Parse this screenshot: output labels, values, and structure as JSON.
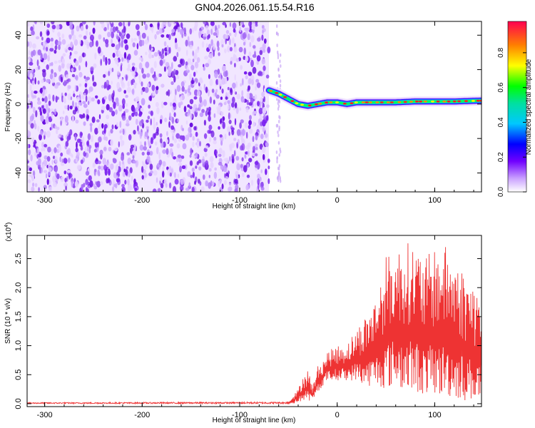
{
  "title": "GN04.2026.061.15.54.R16",
  "colors": {
    "snr_line": "#ee3333",
    "spec_dot": "#7a20f0",
    "background": "#ffffff"
  },
  "chart_data": [
    {
      "type": "heatmap",
      "name": "spectrogram",
      "xlabel": "Height of straight line (km)",
      "ylabel": "Frequency (Hz)",
      "xlim": [
        -318,
        148
      ],
      "ylim": [
        -51,
        48
      ],
      "xticks": [
        -300,
        -200,
        -100,
        0,
        100
      ],
      "xtick_labels": [
        "-300",
        "-200",
        "-100",
        "0",
        "100"
      ],
      "yticks": [
        -40,
        -20,
        0,
        20,
        40
      ],
      "ytick_labels": [
        "-40",
        "-20",
        "0",
        "20",
        "40"
      ],
      "noise_region_x": [
        -318,
        -70
      ],
      "signal_trace": {
        "x": [
          -70,
          -60,
          -50,
          -40,
          -30,
          -20,
          -10,
          0,
          10,
          20,
          40,
          60,
          80,
          100,
          120,
          148
        ],
        "y": [
          8,
          6,
          3,
          0,
          -1,
          0,
          1,
          1,
          0,
          1,
          1,
          1,
          1.5,
          1.5,
          1.5,
          2
        ]
      },
      "colorbar": {
        "label": "Normalized spectral amplitude",
        "range": [
          0,
          0.98
        ],
        "ticks": [
          0.0,
          0.2,
          0.4,
          0.6,
          0.8
        ],
        "tick_labels": [
          "0.0",
          "0.2",
          "0.4",
          "0.6",
          "0.8"
        ]
      }
    },
    {
      "type": "line",
      "name": "snr",
      "xlabel": "Height of straight line (km)",
      "ylabel": "SNR (10 * v/v)",
      "y_multiplier": "(x10",
      "y_multiplier_exp": "4",
      "y_multiplier_close": ")",
      "xlim": [
        -318,
        148
      ],
      "ylim": [
        -0.05,
        2.9
      ],
      "xticks": [
        -300,
        -200,
        -100,
        0,
        100
      ],
      "xtick_labels": [
        "-300",
        "-200",
        "-100",
        "0",
        "100"
      ],
      "yticks": [
        0.0,
        0.5,
        1.0,
        1.5,
        2.0,
        2.5
      ],
      "ytick_labels": [
        "0.0",
        "0.5",
        "1.0",
        "1.5",
        "2.0",
        "2.5"
      ],
      "envelope": {
        "x": [
          -318,
          -50,
          -45,
          -40,
          -35,
          -30,
          -25,
          -20,
          -15,
          -10,
          0,
          10,
          20,
          30,
          40,
          50,
          60,
          70,
          80,
          90,
          100,
          110,
          120,
          130,
          140,
          148
        ],
        "ymin": [
          0.0,
          0.0,
          0.0,
          0.02,
          0.05,
          0.05,
          0.05,
          0.2,
          0.3,
          0.4,
          0.4,
          0.4,
          0.4,
          0.3,
          0.3,
          0.25,
          0.3,
          0.2,
          0.2,
          0.15,
          0.15,
          0.1,
          0.1,
          0.05,
          0.05,
          0.05
        ],
        "ymax": [
          0.02,
          0.03,
          0.15,
          0.25,
          0.5,
          0.6,
          0.3,
          0.65,
          0.75,
          0.9,
          1.0,
          1.05,
          1.3,
          1.55,
          1.85,
          2.55,
          2.65,
          2.8,
          2.75,
          2.5,
          2.7,
          2.75,
          2.55,
          2.3,
          2.1,
          1.95
        ]
      }
    }
  ]
}
